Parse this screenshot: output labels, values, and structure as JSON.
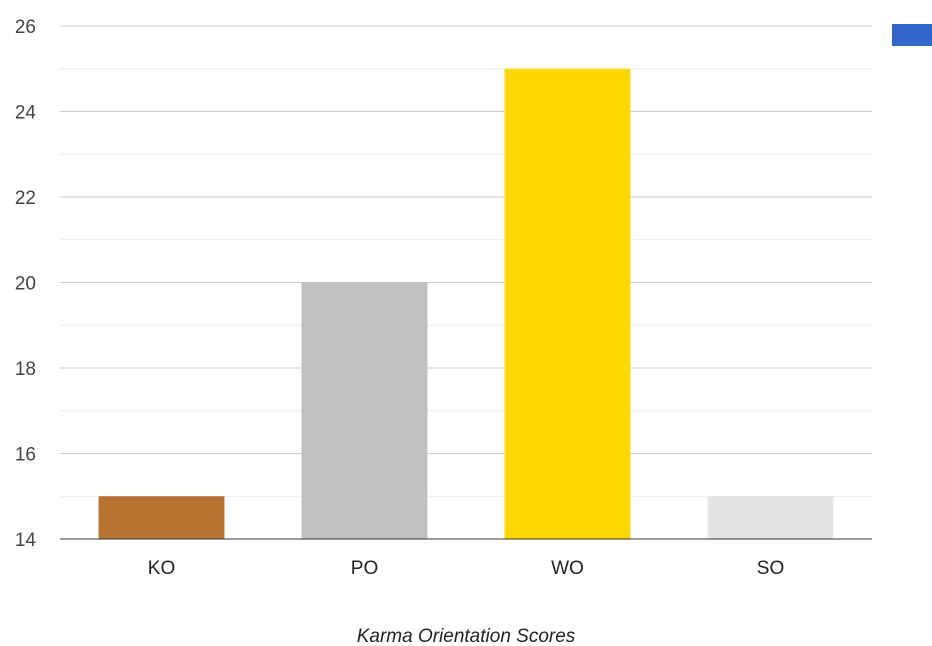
{
  "chart_data": {
    "type": "bar",
    "categories": [
      "KO",
      "PO",
      "WO",
      "SO"
    ],
    "values": [
      15,
      20,
      25,
      15
    ],
    "bar_colors": [
      "#b87333",
      "#c0c0c0",
      "#ffd700",
      "#e5e4e2"
    ],
    "title": "",
    "xlabel": "Karma Orientation Scores",
    "ylabel": "",
    "ylim": [
      14,
      26
    ],
    "yticks": [
      14,
      16,
      18,
      20,
      22,
      24,
      26
    ],
    "grid": true,
    "legend": {
      "placement": "top-right",
      "swatch_color": "#3366cc"
    }
  }
}
